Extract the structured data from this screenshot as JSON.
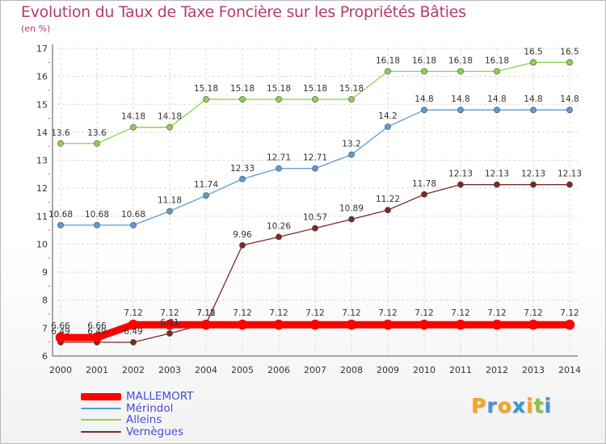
{
  "chart_data": {
    "type": "line",
    "title": "Evolution du Taux de Taxe Foncière sur les Propriétés Bâties",
    "ylabel": "(en %)",
    "xlabel": "",
    "x": [
      "2000",
      "2001",
      "2002",
      "2003",
      "2004",
      "2005",
      "2006",
      "2007",
      "2008",
      "2009",
      "2010",
      "2011",
      "2012",
      "2013",
      "2014"
    ],
    "ylim": [
      6,
      17
    ],
    "yticks": [
      "6",
      "7",
      "8",
      "9",
      "10",
      "11",
      "12",
      "13",
      "14",
      "15",
      "16",
      "17"
    ],
    "series": [
      {
        "name": "Alleins",
        "color": "#8fd14f",
        "values": [
          13.6,
          13.6,
          14.18,
          14.18,
          15.18,
          15.18,
          15.18,
          15.18,
          15.18,
          16.18,
          16.18,
          16.18,
          16.18,
          16.5,
          16.5
        ],
        "labels": [
          "13.6",
          "13.6",
          "14.18",
          "14.18",
          "15.18",
          "15.18",
          "15.18",
          "15.18",
          "15.18",
          "16.18",
          "16.18",
          "16.18",
          "16.18",
          "16.5",
          "16.5"
        ]
      },
      {
        "name": "Mérindol",
        "color": "#5b9bd5",
        "values": [
          10.68,
          10.68,
          10.68,
          11.18,
          11.74,
          12.33,
          12.71,
          12.71,
          13.2,
          14.2,
          14.8,
          14.8,
          14.8,
          14.8,
          14.8
        ],
        "labels": [
          "10.68",
          "10.68",
          "10.68",
          "11.18",
          "11.74",
          "12.33",
          "12.71",
          "12.71",
          "13.2",
          "14.2",
          "14.8",
          "14.8",
          "14.8",
          "14.8",
          "14.8"
        ]
      },
      {
        "name": "Vernègues",
        "color": "#7a2828",
        "values": [
          6.49,
          6.49,
          6.49,
          6.81,
          7.15,
          9.96,
          10.26,
          10.57,
          10.89,
          11.22,
          11.78,
          12.13,
          12.13,
          12.13,
          12.13
        ],
        "labels": [
          "6.49",
          "6.49",
          "6.49",
          "6.81",
          "7.15",
          "9.96",
          "10.26",
          "10.57",
          "10.89",
          "11.22",
          "11.78",
          "12.13",
          "12.13",
          "12.13",
          "12.13"
        ]
      },
      {
        "name": "MALLEMORT",
        "color": "#ff0000",
        "values": [
          6.66,
          6.66,
          7.12,
          7.12,
          7.12,
          7.12,
          7.12,
          7.12,
          7.12,
          7.12,
          7.12,
          7.12,
          7.12,
          7.12,
          7.12
        ],
        "labels": [
          "6.66",
          "6.66",
          "7.12",
          "7.12",
          "7.12",
          "7.12",
          "7.12",
          "7.12",
          "7.12",
          "7.12",
          "7.12",
          "7.12",
          "7.12",
          "7.12",
          "7.12"
        ]
      }
    ],
    "legend_order": [
      "MALLEMORT",
      "Mérindol",
      "Alleins",
      "Vernègues"
    ],
    "legend_position": "bottom-left",
    "grid": true
  },
  "logo": {
    "letters": [
      "P",
      "r",
      "o",
      "x",
      "i",
      "t",
      "i"
    ],
    "colors": [
      "#f5a623",
      "#4a90d9",
      "#f5a623",
      "#2e9bd6",
      "#f5a623",
      "#8bc34a",
      "#4a90d9"
    ]
  }
}
